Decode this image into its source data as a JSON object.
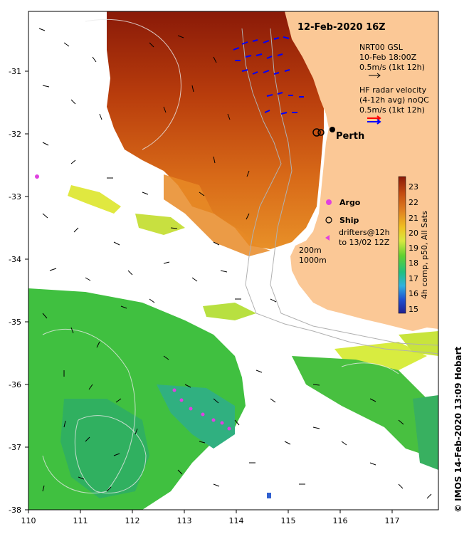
{
  "title": "12-Feb-2020 16Z",
  "x_ticks": [
    "110",
    "111",
    "112",
    "113",
    "114",
    "115",
    "116",
    "117"
  ],
  "y_ticks": [
    "-31",
    "-32",
    "-33",
    "-34",
    "-35",
    "-36",
    "-37",
    "-38"
  ],
  "city": "Perth",
  "legend": {
    "nrt": [
      "NRT00 GSL",
      "10-Feb 18:00Z",
      "0.5m/s (1kt 12h)"
    ],
    "hf": [
      "HF radar velocity",
      "(4-12h avg) noQC",
      "0.5m/s (1kt 12h)"
    ],
    "argo": "Argo",
    "ship": "Ship",
    "drifters": [
      "drifters@12h",
      "to 13/02 12Z"
    ],
    "depth": [
      "200m",
      "1000m"
    ]
  },
  "colorbar": {
    "ticks": [
      "23",
      "22",
      "21",
      "20",
      "19",
      "18",
      "17",
      "16",
      "15"
    ],
    "label": "4h comp, p50, All Sats",
    "colors": [
      "#8a1a08",
      "#c24a10",
      "#e08020",
      "#f0c020",
      "#d8e840",
      "#60d030",
      "#20c080",
      "#30b0e0",
      "#2050d0",
      "#202090"
    ]
  },
  "credit": "© IMOS 14-Feb-2020 13:09 Hobart",
  "colors": {
    "land": "#fbc896",
    "ocean_bg": "#ffffff",
    "hf_blue": "#0000ff",
    "hf_red": "#ff0000",
    "drifter": "#e040e0"
  }
}
